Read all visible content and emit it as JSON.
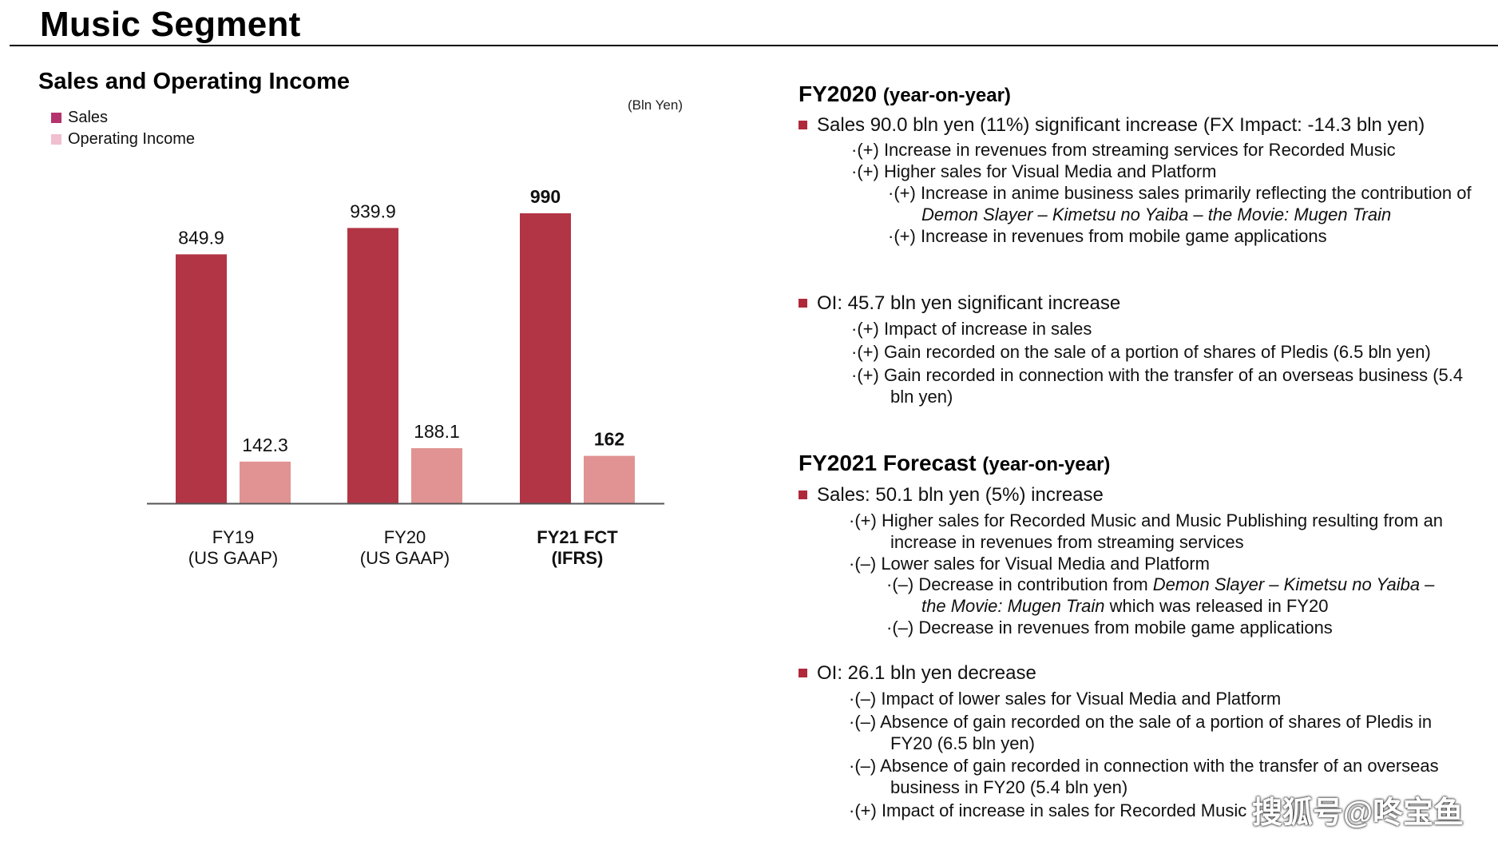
{
  "page_title": "Music Segment",
  "chart_title": "Sales and Operating Income",
  "unit": "(Bln Yen)",
  "colors": {
    "sales": "#b23545",
    "oi": "#e09392",
    "legend_sales": "#b5336c",
    "legend_oi": "#f1bfcf",
    "bullet": "#b0293a"
  },
  "chart_data": {
    "type": "bar",
    "categories": [
      "FY19\n(US GAAP)",
      "FY20\n(US GAAP)",
      "FY21 FCT\n(IFRS)"
    ],
    "category_lines": [
      [
        "FY19",
        "(US GAAP)"
      ],
      [
        "FY20",
        "(US GAAP)"
      ],
      [
        "FY21 FCT",
        "(IFRS)"
      ]
    ],
    "category_bold": [
      false,
      false,
      true
    ],
    "series": [
      {
        "name": "Sales",
        "values": [
          849.9,
          939.9,
          990
        ],
        "labels": [
          "849.9",
          "939.9",
          "990"
        ]
      },
      {
        "name": "Operating Income",
        "values": [
          142.3,
          188.1,
          162
        ],
        "labels": [
          "142.3",
          "188.1",
          "162"
        ]
      }
    ],
    "ylim": [
      0,
      1200
    ],
    "legend": "top-left",
    "grid": false
  },
  "fy2020": {
    "title": "FY2020",
    "subtitle": "(year-on-year)",
    "sales_bullet": "Sales  90.0 bln yen (11%) significant increase (FX Impact: -14.3 bln yen)",
    "sales_lines": [
      "·(+) Increase in revenues from streaming services for Recorded Music",
      "·(+) Higher sales for Visual Media and Platform",
      "·(+) Increase in anime business sales primarily reflecting the contribution of",
      "Demon Slayer – Kimetsu no Yaiba – the Movie: Mugen Train",
      "·(+) Increase in revenues from mobile game applications"
    ],
    "oi_bullet": "OI: 45.7 bln yen significant increase",
    "oi_lines": [
      "·(+) Impact of increase in sales",
      "·(+) Gain recorded on the sale of a portion of shares of Pledis (6.5 bln yen)",
      "·(+) Gain recorded in connection with the transfer of an overseas business (5.4",
      "bln yen)"
    ]
  },
  "fy2021": {
    "title": "FY2021 Forecast",
    "subtitle": "(year-on-year)",
    "sales_bullet": "Sales: 50.1 bln yen (5%) increase",
    "sales_lines": [
      "·(+) Higher sales for Recorded Music and Music Publishing resulting from an",
      "increase in revenues from streaming services",
      "·(–) Lower sales for Visual Media and Platform",
      "·(–) Decrease in contribution from ",
      "Demon Slayer – Kimetsu no Yaiba –",
      "the Movie: Mugen Train",
      " which was released in FY20",
      "·(–) Decrease in revenues from mobile game applications"
    ],
    "oi_bullet": "OI: 26.1 bln yen decrease",
    "oi_lines": [
      "·(–) Impact of lower sales for Visual Media and Platform",
      "·(–) Absence of gain recorded on the sale of a portion of shares of Pledis in",
      "FY20 (6.5 bln yen)",
      "·(–) Absence of gain recorded in connection with the transfer of an overseas",
      "business in FY20 (5.4 bln yen)",
      "·(+) Impact of increase in sales for Recorded Music"
    ]
  },
  "watermark": "搜狐号@咚宝鱼"
}
